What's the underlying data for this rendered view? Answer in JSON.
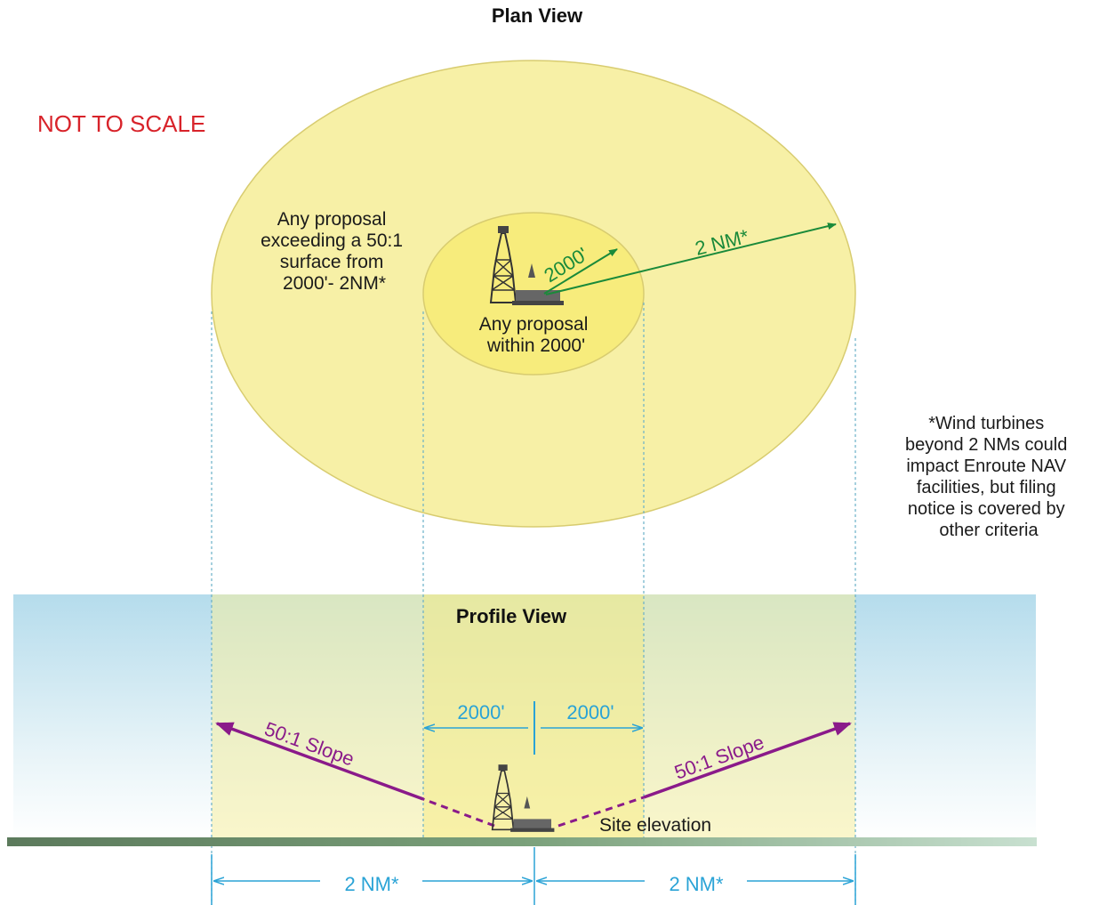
{
  "plan_view": {
    "title": "Plan View",
    "scale_note": "NOT TO SCALE",
    "outer_zone_label": [
      "Any proposal",
      "exceeding a 50:1",
      "surface from",
      "2000'- 2NM*"
    ],
    "inner_zone_label": [
      "Any proposal",
      "within 2000'"
    ],
    "radius_inner_label": "2000'",
    "radius_outer_label": "2 NM*"
  },
  "footnote": [
    "*Wind turbines",
    "beyond 2 NMs could",
    "impact Enroute NAV",
    "facilities, but filing",
    "notice is covered by",
    "other criteria"
  ],
  "profile_view": {
    "title": "Profile View",
    "left_inner_dim": "2000'",
    "right_inner_dim": "2000'",
    "left_slope_label": "50:1 Slope",
    "right_slope_label": "50:1 Slope",
    "site_label": "Site elevation",
    "left_outer_dim": "2 NM*",
    "right_outer_dim": "2 NM*"
  },
  "colors": {
    "outer_zone_fill": "#f7f0a6",
    "inner_zone_fill": "#f7ec7c",
    "sky_top": "#b5dcec",
    "green_arrow": "#1a8a3a",
    "cyan_dim": "#2aa3d6",
    "purple_slope": "#8a1a8a",
    "ground": "#5a7a5a"
  }
}
